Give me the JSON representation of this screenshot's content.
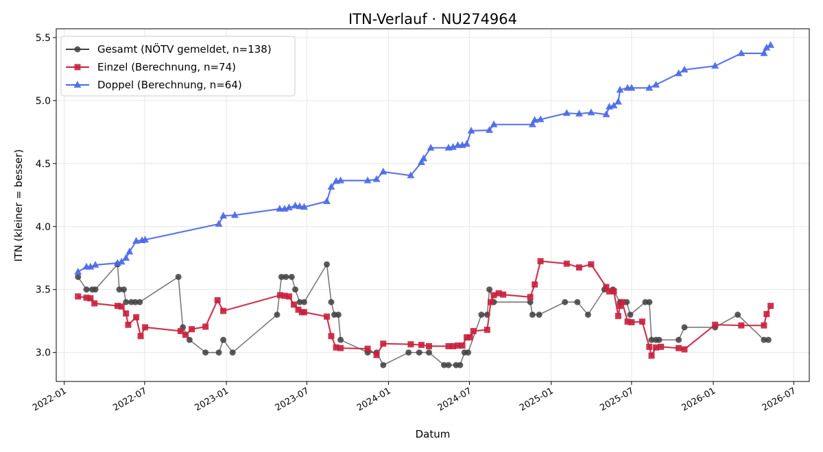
{
  "chart_data": {
    "type": "line",
    "title": "ITN-Verlauf · NU274964",
    "xlabel": "Datum",
    "ylabel": "ITN  (kleiner = besser)",
    "x_type": "date",
    "xlim": [
      "2021-12-14",
      "2026-08-05"
    ],
    "ylim": [
      2.77,
      5.57
    ],
    "x_ticks": [
      {
        "date": "2022-01-01",
        "label": "2022-01"
      },
      {
        "date": "2022-07-01",
        "label": "2022-07"
      },
      {
        "date": "2023-01-01",
        "label": "2023-01"
      },
      {
        "date": "2023-07-01",
        "label": "2023-07"
      },
      {
        "date": "2024-01-01",
        "label": "2024-01"
      },
      {
        "date": "2024-07-01",
        "label": "2024-07"
      },
      {
        "date": "2025-01-01",
        "label": "2025-01"
      },
      {
        "date": "2025-07-01",
        "label": "2025-07"
      },
      {
        "date": "2026-01-01",
        "label": "2026-01"
      },
      {
        "date": "2026-07-01",
        "label": "2026-07"
      }
    ],
    "y_ticks": [
      3.0,
      3.5,
      4.0,
      4.5,
      5.0,
      5.5
    ],
    "y_tick_labels": [
      "3.0",
      "3.5",
      "4.0",
      "4.5",
      "5.0",
      "5.5"
    ],
    "grid": true,
    "legend_position": "upper-left",
    "series": [
      {
        "name": "Gesamt (NÖTV gemeldet, n=138)",
        "color": "#404040",
        "marker": "circle",
        "points": [
          [
            "2022-02-01",
            3.6
          ],
          [
            "2022-02-20",
            3.5
          ],
          [
            "2022-03-05",
            3.5
          ],
          [
            "2022-03-12",
            3.5
          ],
          [
            "2022-05-01",
            3.7
          ],
          [
            "2022-05-05",
            3.5
          ],
          [
            "2022-05-15",
            3.5
          ],
          [
            "2022-05-20",
            3.4
          ],
          [
            "2022-06-01",
            3.4
          ],
          [
            "2022-06-10",
            3.4
          ],
          [
            "2022-06-20",
            3.4
          ],
          [
            "2022-09-15",
            3.6
          ],
          [
            "2022-09-25",
            3.2
          ],
          [
            "2022-10-10",
            3.1
          ],
          [
            "2022-11-15",
            3.0
          ],
          [
            "2022-12-15",
            3.0
          ],
          [
            "2022-12-25",
            3.1
          ],
          [
            "2023-01-15",
            3.0
          ],
          [
            "2023-04-25",
            3.3
          ],
          [
            "2023-05-05",
            3.6
          ],
          [
            "2023-05-15",
            3.6
          ],
          [
            "2023-05-28",
            3.6
          ],
          [
            "2023-06-05",
            3.5
          ],
          [
            "2023-06-15",
            3.4
          ],
          [
            "2023-06-25",
            3.4
          ],
          [
            "2023-08-15",
            3.7
          ],
          [
            "2023-08-25",
            3.4
          ],
          [
            "2023-09-01",
            3.3
          ],
          [
            "2023-09-10",
            3.3
          ],
          [
            "2023-09-15",
            3.1
          ],
          [
            "2023-11-15",
            3.0
          ],
          [
            "2023-12-05",
            3.0
          ],
          [
            "2023-12-20",
            2.9
          ],
          [
            "2024-02-15",
            3.0
          ],
          [
            "2024-03-10",
            3.0
          ],
          [
            "2024-04-01",
            3.0
          ],
          [
            "2024-05-05",
            2.9
          ],
          [
            "2024-05-15",
            2.9
          ],
          [
            "2024-06-01",
            2.9
          ],
          [
            "2024-06-10",
            2.9
          ],
          [
            "2024-06-20",
            3.0
          ],
          [
            "2024-06-28",
            3.0
          ],
          [
            "2024-07-28",
            3.3
          ],
          [
            "2024-08-10",
            3.3
          ],
          [
            "2024-08-15",
            3.5
          ],
          [
            "2024-08-25",
            3.4
          ],
          [
            "2024-11-15",
            3.4
          ],
          [
            "2024-11-20",
            3.3
          ],
          [
            "2024-12-05",
            3.3
          ],
          [
            "2025-02-01",
            3.4
          ],
          [
            "2025-03-01",
            3.4
          ],
          [
            "2025-03-25",
            3.3
          ],
          [
            "2025-05-01",
            3.5
          ],
          [
            "2025-05-20",
            3.5
          ],
          [
            "2025-06-05",
            3.4
          ],
          [
            "2025-06-20",
            3.4
          ],
          [
            "2025-06-28",
            3.3
          ],
          [
            "2025-08-01",
            3.4
          ],
          [
            "2025-08-10",
            3.4
          ],
          [
            "2025-08-15",
            3.1
          ],
          [
            "2025-08-25",
            3.1
          ],
          [
            "2025-09-01",
            3.1
          ],
          [
            "2025-10-15",
            3.1
          ],
          [
            "2025-10-28",
            3.2
          ],
          [
            "2026-01-05",
            3.2
          ],
          [
            "2026-02-25",
            3.3
          ],
          [
            "2026-04-25",
            3.1
          ],
          [
            "2026-05-05",
            3.1
          ]
        ]
      },
      {
        "name": "Einzel (Berechnung, n=74)",
        "color": "#c8203c",
        "marker": "square",
        "points": [
          [
            "2022-02-01",
            3.445
          ],
          [
            "2022-02-20",
            3.435
          ],
          [
            "2022-03-01",
            3.43
          ],
          [
            "2022-03-10",
            3.39
          ],
          [
            "2022-05-01",
            3.37
          ],
          [
            "2022-05-10",
            3.365
          ],
          [
            "2022-05-20",
            3.31
          ],
          [
            "2022-05-25",
            3.22
          ],
          [
            "2022-06-12",
            3.28
          ],
          [
            "2022-06-22",
            3.13
          ],
          [
            "2022-07-02",
            3.2
          ],
          [
            "2022-09-20",
            3.17
          ],
          [
            "2022-10-01",
            3.14
          ],
          [
            "2022-10-15",
            3.185
          ],
          [
            "2022-11-15",
            3.205
          ],
          [
            "2022-12-12",
            3.415
          ],
          [
            "2022-12-25",
            3.33
          ],
          [
            "2023-05-02",
            3.455
          ],
          [
            "2023-05-12",
            3.45
          ],
          [
            "2023-05-22",
            3.445
          ],
          [
            "2023-06-02",
            3.38
          ],
          [
            "2023-06-12",
            3.34
          ],
          [
            "2023-06-20",
            3.32
          ],
          [
            "2023-06-25",
            3.32
          ],
          [
            "2023-08-15",
            3.285
          ],
          [
            "2023-08-25",
            3.13
          ],
          [
            "2023-09-05",
            3.04
          ],
          [
            "2023-09-15",
            3.035
          ],
          [
            "2023-11-15",
            3.03
          ],
          [
            "2023-12-05",
            2.98
          ],
          [
            "2023-12-20",
            3.07
          ],
          [
            "2024-02-20",
            3.065
          ],
          [
            "2024-03-15",
            3.06
          ],
          [
            "2024-04-01",
            3.05
          ],
          [
            "2024-05-15",
            3.05
          ],
          [
            "2024-05-25",
            3.05
          ],
          [
            "2024-06-05",
            3.055
          ],
          [
            "2024-06-15",
            3.055
          ],
          [
            "2024-06-25",
            3.12
          ],
          [
            "2024-07-02",
            3.12
          ],
          [
            "2024-07-10",
            3.17
          ],
          [
            "2024-08-10",
            3.18
          ],
          [
            "2024-08-18",
            3.4
          ],
          [
            "2024-08-25",
            3.455
          ],
          [
            "2024-09-05",
            3.47
          ],
          [
            "2024-09-15",
            3.46
          ],
          [
            "2024-11-15",
            3.44
          ],
          [
            "2024-11-25",
            3.54
          ],
          [
            "2024-12-08",
            3.725
          ],
          [
            "2025-02-05",
            3.705
          ],
          [
            "2025-03-05",
            3.675
          ],
          [
            "2025-04-01",
            3.7
          ],
          [
            "2025-05-05",
            3.52
          ],
          [
            "2025-05-12",
            3.485
          ],
          [
            "2025-05-22",
            3.485
          ],
          [
            "2025-06-01",
            3.29
          ],
          [
            "2025-06-05",
            3.37
          ],
          [
            "2025-06-10",
            3.4
          ],
          [
            "2025-06-22",
            3.245
          ],
          [
            "2025-07-01",
            3.24
          ],
          [
            "2025-07-25",
            3.245
          ],
          [
            "2025-08-10",
            3.045
          ],
          [
            "2025-08-15",
            2.975
          ],
          [
            "2025-08-25",
            3.04
          ],
          [
            "2025-09-05",
            3.045
          ],
          [
            "2025-10-15",
            3.035
          ],
          [
            "2025-10-28",
            3.025
          ],
          [
            "2026-01-05",
            3.22
          ],
          [
            "2026-03-05",
            3.215
          ],
          [
            "2026-04-25",
            3.215
          ],
          [
            "2026-05-01",
            3.305
          ],
          [
            "2026-05-10",
            3.37
          ]
        ]
      },
      {
        "name": "Doppel (Berechnung, n=64)",
        "color": "#4a68e6",
        "marker": "triangle",
        "points": [
          [
            "2022-02-01",
            3.64
          ],
          [
            "2022-02-20",
            3.68
          ],
          [
            "2022-03-01",
            3.68
          ],
          [
            "2022-03-12",
            3.695
          ],
          [
            "2022-05-01",
            3.71
          ],
          [
            "2022-05-10",
            3.72
          ],
          [
            "2022-05-20",
            3.75
          ],
          [
            "2022-05-28",
            3.8
          ],
          [
            "2022-06-12",
            3.885
          ],
          [
            "2022-06-25",
            3.89
          ],
          [
            "2022-07-02",
            3.895
          ],
          [
            "2022-12-15",
            4.02
          ],
          [
            "2022-12-25",
            4.085
          ],
          [
            "2023-01-20",
            4.09
          ],
          [
            "2023-05-01",
            4.14
          ],
          [
            "2023-05-12",
            4.14
          ],
          [
            "2023-05-22",
            4.15
          ],
          [
            "2023-06-05",
            4.165
          ],
          [
            "2023-06-15",
            4.16
          ],
          [
            "2023-06-25",
            4.155
          ],
          [
            "2023-08-15",
            4.2
          ],
          [
            "2023-08-25",
            4.315
          ],
          [
            "2023-09-05",
            4.36
          ],
          [
            "2023-09-15",
            4.365
          ],
          [
            "2023-11-15",
            4.365
          ],
          [
            "2023-12-05",
            4.375
          ],
          [
            "2023-12-20",
            4.435
          ],
          [
            "2024-02-20",
            4.405
          ],
          [
            "2024-03-15",
            4.51
          ],
          [
            "2024-03-20",
            4.54
          ],
          [
            "2024-04-05",
            4.625
          ],
          [
            "2024-05-15",
            4.625
          ],
          [
            "2024-05-25",
            4.63
          ],
          [
            "2024-06-05",
            4.645
          ],
          [
            "2024-06-15",
            4.645
          ],
          [
            "2024-06-25",
            4.655
          ],
          [
            "2024-07-05",
            4.76
          ],
          [
            "2024-08-15",
            4.765
          ],
          [
            "2024-08-25",
            4.81
          ],
          [
            "2024-11-20",
            4.81
          ],
          [
            "2024-11-25",
            4.845
          ],
          [
            "2024-12-08",
            4.85
          ],
          [
            "2025-02-05",
            4.9
          ],
          [
            "2025-03-05",
            4.895
          ],
          [
            "2025-04-01",
            4.905
          ],
          [
            "2025-05-05",
            4.89
          ],
          [
            "2025-05-12",
            4.95
          ],
          [
            "2025-05-22",
            4.96
          ],
          [
            "2025-06-01",
            4.99
          ],
          [
            "2025-06-05",
            5.085
          ],
          [
            "2025-06-22",
            5.1
          ],
          [
            "2025-07-01",
            5.1
          ],
          [
            "2025-08-10",
            5.1
          ],
          [
            "2025-08-25",
            5.125
          ],
          [
            "2025-10-15",
            5.215
          ],
          [
            "2025-10-28",
            5.245
          ],
          [
            "2026-01-05",
            5.275
          ],
          [
            "2026-03-05",
            5.375
          ],
          [
            "2026-04-25",
            5.375
          ],
          [
            "2026-05-01",
            5.42
          ],
          [
            "2026-05-10",
            5.44
          ]
        ]
      }
    ]
  }
}
